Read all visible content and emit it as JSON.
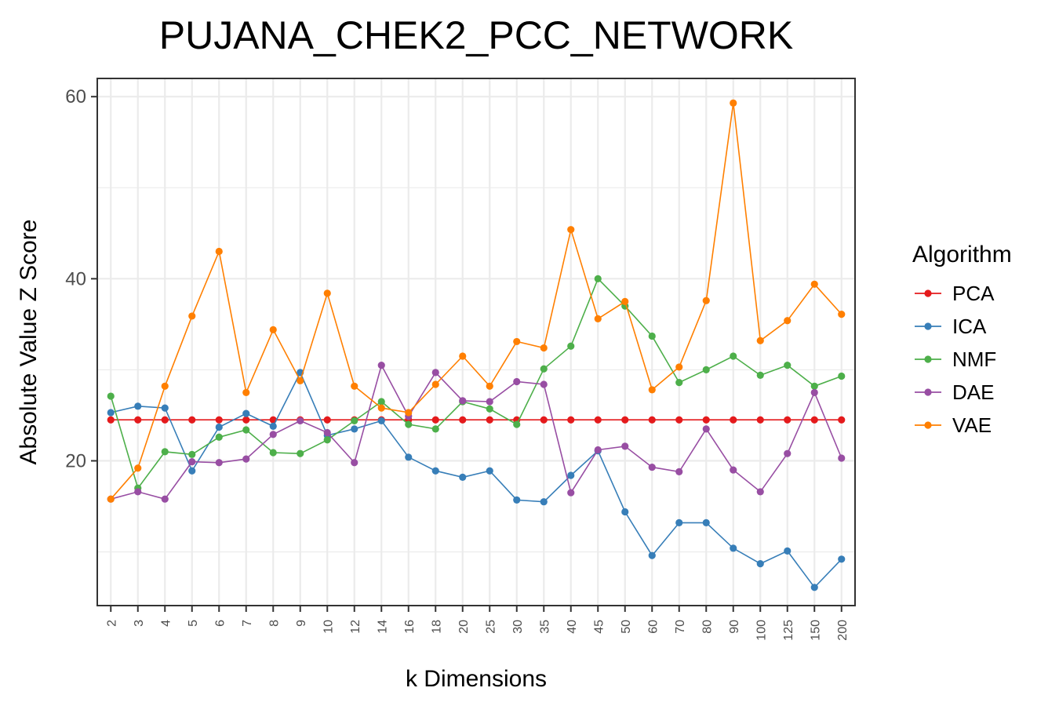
{
  "chart_data": {
    "type": "line",
    "title": "PUJANA_CHEK2_PCC_NETWORK",
    "xlabel": "k Dimensions",
    "ylabel": "Absolute Value Z Score",
    "categories": [
      "2",
      "3",
      "4",
      "5",
      "6",
      "7",
      "8",
      "9",
      "10",
      "12",
      "14",
      "16",
      "18",
      "20",
      "25",
      "30",
      "35",
      "40",
      "45",
      "50",
      "60",
      "70",
      "80",
      "90",
      "100",
      "125",
      "150",
      "200"
    ],
    "ylim": [
      4.1,
      62
    ],
    "yticks": [
      20,
      40,
      60
    ],
    "grid": true,
    "legend": {
      "title": "Algorithm",
      "placement": "right"
    },
    "series": [
      {
        "name": "PCA",
        "color": "#E41A1C",
        "values": [
          24.5,
          24.5,
          24.5,
          24.5,
          24.5,
          24.5,
          24.5,
          24.5,
          24.5,
          24.5,
          24.5,
          24.5,
          24.5,
          24.5,
          24.5,
          24.5,
          24.5,
          24.5,
          24.5,
          24.5,
          24.5,
          24.5,
          24.5,
          24.5,
          24.5,
          24.5,
          24.5,
          24.5
        ]
      },
      {
        "name": "ICA",
        "color": "#377EB8",
        "values": [
          25.3,
          26.0,
          25.8,
          18.9,
          23.7,
          25.2,
          23.8,
          29.7,
          22.8,
          23.5,
          24.4,
          20.4,
          18.9,
          18.2,
          18.9,
          15.7,
          15.5,
          18.4,
          21.1,
          14.4,
          9.6,
          13.2,
          13.2,
          10.4,
          8.7,
          10.1,
          6.1,
          9.2
        ]
      },
      {
        "name": "NMF",
        "color": "#4DAF4A",
        "values": [
          27.1,
          17.0,
          21.0,
          20.7,
          22.6,
          23.4,
          20.9,
          20.8,
          22.3,
          24.4,
          26.5,
          24.0,
          23.5,
          26.5,
          25.7,
          24.0,
          30.1,
          32.6,
          40.0,
          37.0,
          33.7,
          28.6,
          30.0,
          31.5,
          29.4,
          30.5,
          28.2,
          29.3
        ]
      },
      {
        "name": "DAE",
        "color": "#984EA3",
        "values": [
          15.8,
          16.6,
          15.8,
          19.9,
          19.8,
          20.2,
          22.9,
          24.4,
          23.1,
          19.8,
          30.5,
          24.9,
          29.7,
          26.6,
          26.5,
          28.7,
          28.4,
          16.5,
          21.2,
          21.6,
          19.3,
          18.8,
          23.5,
          19.0,
          16.6,
          20.8,
          27.5,
          20.3
        ]
      },
      {
        "name": "VAE",
        "color": "#FF7F00",
        "values": [
          15.8,
          19.2,
          28.2,
          35.9,
          43.0,
          27.5,
          34.4,
          28.8,
          38.4,
          28.2,
          25.8,
          25.3,
          28.4,
          31.5,
          28.2,
          33.1,
          32.4,
          45.4,
          35.6,
          37.5,
          27.8,
          30.3,
          37.6,
          59.3,
          33.2,
          35.4,
          39.4,
          36.1
        ]
      }
    ]
  }
}
